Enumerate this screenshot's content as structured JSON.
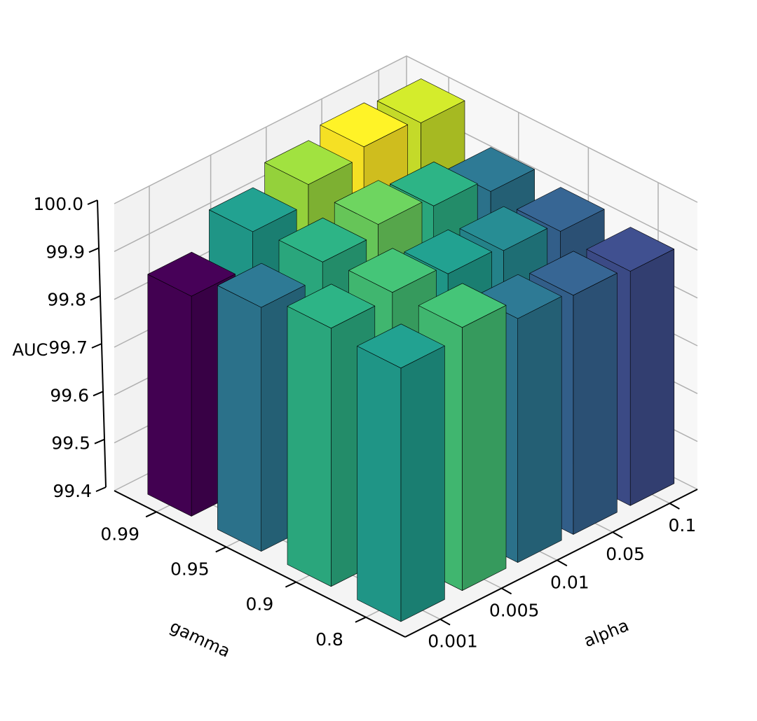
{
  "chart_data": {
    "type": "bar3d",
    "title": "",
    "xlabel": "gamma",
    "ylabel": "alpha",
    "zlabel": "AUC",
    "gamma": [
      "0.99",
      "0.95",
      "0.9",
      "0.8"
    ],
    "alpha": [
      "0.001",
      "0.005",
      "0.01",
      "0.05",
      "0.1"
    ],
    "zlim": [
      99.4,
      100.0
    ],
    "zticks": [
      "99.4",
      "99.5",
      "99.6",
      "99.7",
      "99.8",
      "99.9",
      "100.0"
    ],
    "values": [
      [
        99.86,
        99.93,
        99.97,
        99.99,
        99.98
      ],
      [
        99.91,
        99.94,
        99.96,
        99.94,
        99.91
      ],
      [
        99.94,
        99.95,
        99.93,
        99.92,
        99.9
      ],
      [
        99.93,
        99.95,
        99.91,
        99.9,
        99.89
      ]
    ],
    "colormap": "viridis",
    "color_range": [
      99.86,
      99.99
    ]
  }
}
